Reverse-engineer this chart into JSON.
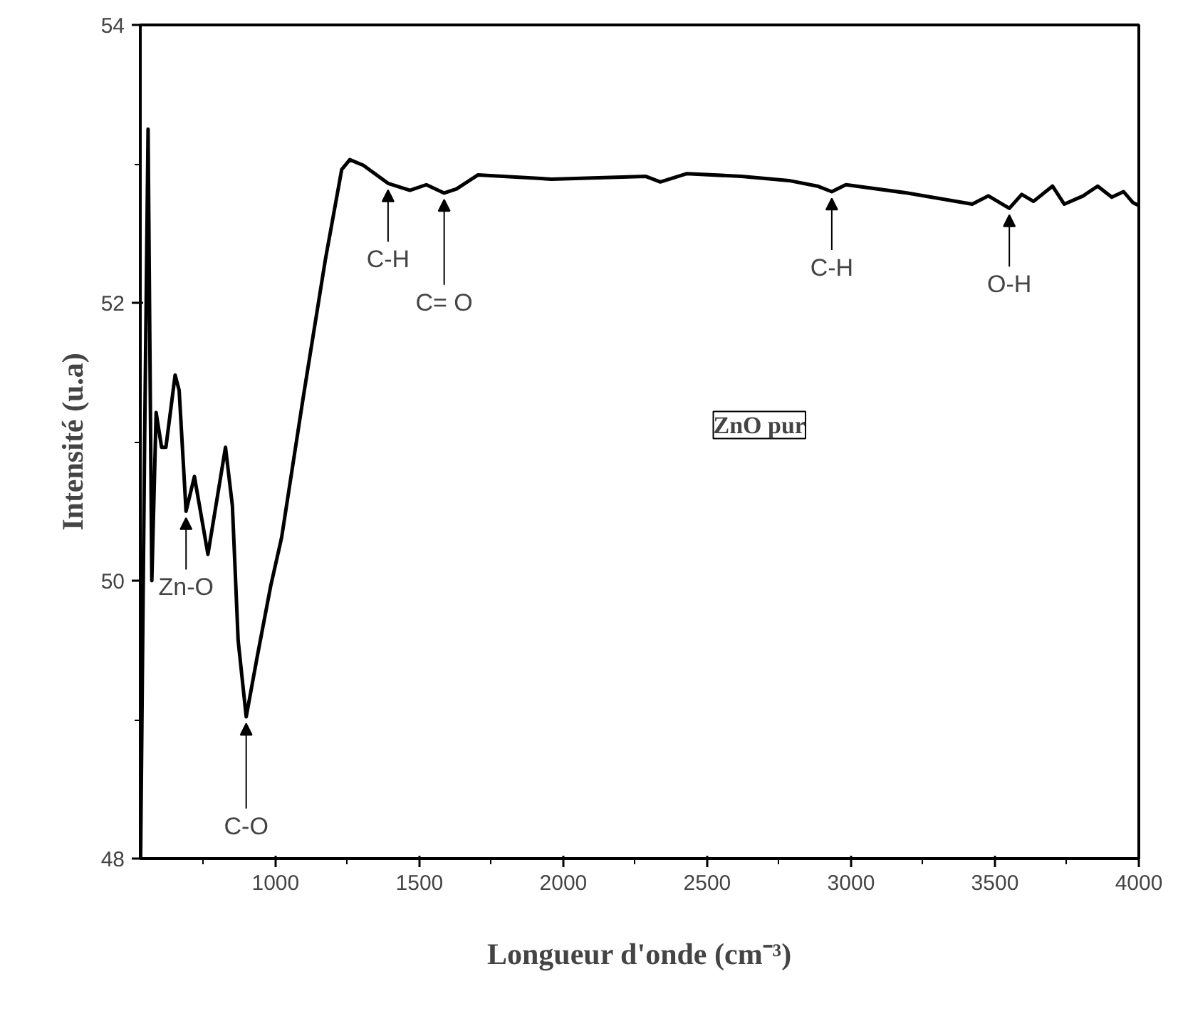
{
  "chart_data": {
    "type": "line",
    "xlabel": "Longueur d'onde (cm⁻³)",
    "ylabel": "Intensité (u.a)",
    "xlim": [
      530,
      4000
    ],
    "ylim": [
      48,
      54
    ],
    "xticks": [
      1000,
      1500,
      2000,
      2500,
      3000,
      3500,
      4000
    ],
    "yticks": [
      48,
      50,
      52,
      54
    ],
    "grid": false,
    "marker": "none",
    "line_style": "solid",
    "series": [
      {
        "color": "#000000",
        "x": [
          531,
          545,
          557,
          570,
          585,
          604,
          619,
          651,
          665,
          689,
          718,
          765,
          826,
          850,
          870,
          898,
          936,
          983,
          1021,
          1097,
          1173,
          1230,
          1258,
          1305,
          1391,
          1467,
          1524,
          1586,
          1629,
          1703,
          1959,
          2287,
          2337,
          2430,
          2619,
          2784,
          2883,
          2933,
          2982,
          3197,
          3421,
          3477,
          3550,
          3593,
          3634,
          3700,
          3741,
          3807,
          3857,
          3906,
          3947,
          3980,
          4000
        ],
        "values": [
          48.0,
          51.0,
          53.25,
          50.0,
          51.21,
          50.96,
          50.96,
          51.48,
          51.37,
          50.5,
          50.75,
          50.19,
          50.96,
          50.54,
          49.57,
          49.02,
          49.45,
          49.96,
          50.31,
          51.33,
          52.31,
          52.96,
          53.03,
          52.99,
          52.86,
          52.81,
          52.85,
          52.79,
          52.82,
          52.92,
          52.89,
          52.91,
          52.87,
          52.93,
          52.91,
          52.88,
          52.84,
          52.8,
          52.85,
          52.79,
          52.71,
          52.77,
          52.68,
          52.78,
          52.73,
          52.84,
          52.71,
          52.77,
          52.84,
          52.76,
          52.8,
          52.72,
          52.7
        ]
      }
    ],
    "annotations": [
      {
        "text": "Zn-O",
        "x": 689,
        "y": 50.5
      },
      {
        "text": "C-O",
        "x": 898,
        "y": 49.02
      },
      {
        "text": "C-H",
        "x": 1391,
        "y": 52.86
      },
      {
        "text": "C= O",
        "x": 1586,
        "y": 52.79
      },
      {
        "text": "C-H",
        "x": 2933,
        "y": 52.8
      },
      {
        "text": "O-H",
        "x": 3550,
        "y": 52.68
      },
      "ZnO pur"
    ]
  }
}
